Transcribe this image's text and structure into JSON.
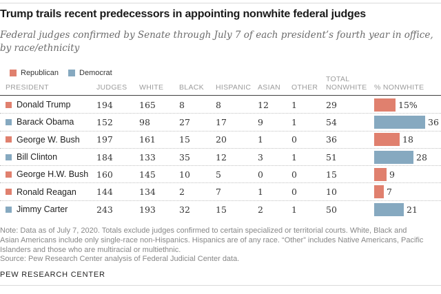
{
  "page": {
    "title": "Trump trails recent predecessors in appointing nonwhite federal judges",
    "subtitle_lines": [
      "Federal judges confirmed by Senate through July 7 of each president’s fourth year in office,",
      "by race/ethnicity"
    ],
    "note_lines": [
      "Note: Data as of July 7, 2020. Totals exclude judges confirmed to certain specialized or territorial courts. White, Black and",
      "Asian Americans include only single-race non-Hispanics. Hispanics are of any race. “Other” includes Native Americans, Pacific",
      "Islanders and those who are multiracial or multiethnic."
    ],
    "source_line": "Source: Pew Research Center analysis of Federal Judicial Center data.",
    "footer_brand": "PEW RESEARCH CENTER"
  },
  "colors": {
    "republican": "#e0806e",
    "democrat": "#86a9c0"
  },
  "legend": [
    {
      "label": "Republican",
      "key": "republican"
    },
    {
      "label": "Democrat",
      "key": "democrat"
    }
  ],
  "headers": {
    "president": "PRESIDENT",
    "judges": "JUDGES",
    "white": "WHITE",
    "black": "BLACK",
    "hispanic": "HISPANIC",
    "asian": "ASIAN",
    "other": "OTHER",
    "total_line1": "TOTAL",
    "total_line2": "NONWHITE",
    "pct": "% NONWHITE"
  },
  "chart_data": {
    "type": "table",
    "title": "Trump trails recent predecessors in appointing nonwhite federal judges",
    "subtitle": "Federal judges confirmed by Senate through July 7 of each president’s fourth year in office, by race/ethnicity",
    "columns": [
      "PRESIDENT",
      "JUDGES",
      "WHITE",
      "BLACK",
      "HISPANIC",
      "ASIAN",
      "OTHER",
      "TOTAL NONWHITE",
      "% NONWHITE"
    ],
    "legend_entries": [
      "Republican",
      "Democrat"
    ],
    "bar_unit": "% nonwhite",
    "rows": [
      {
        "president": "Donald Trump",
        "party": "Republican",
        "judges": 194,
        "white": 165,
        "black": 8,
        "hispanic": 8,
        "asian": 12,
        "other": 1,
        "total_nonwhite": 29,
        "pct_nonwhite": 15,
        "pct_label": "15%"
      },
      {
        "president": "Barack Obama",
        "party": "Democrat",
        "judges": 152,
        "white": 98,
        "black": 27,
        "hispanic": 17,
        "asian": 9,
        "other": 1,
        "total_nonwhite": 54,
        "pct_nonwhite": 36,
        "pct_label": "36"
      },
      {
        "president": "George W. Bush",
        "party": "Republican",
        "judges": 197,
        "white": 161,
        "black": 15,
        "hispanic": 20,
        "asian": 1,
        "other": 0,
        "total_nonwhite": 36,
        "pct_nonwhite": 18,
        "pct_label": "18"
      },
      {
        "president": "Bill Clinton",
        "party": "Democrat",
        "judges": 184,
        "white": 133,
        "black": 35,
        "hispanic": 12,
        "asian": 3,
        "other": 1,
        "total_nonwhite": 51,
        "pct_nonwhite": 28,
        "pct_label": "28"
      },
      {
        "president": "George H.W. Bush",
        "party": "Republican",
        "judges": 160,
        "white": 145,
        "black": 10,
        "hispanic": 5,
        "asian": 0,
        "other": 0,
        "total_nonwhite": 15,
        "pct_nonwhite": 9,
        "pct_label": "9"
      },
      {
        "president": "Ronald Reagan",
        "party": "Republican",
        "judges": 144,
        "white": 134,
        "black": 2,
        "hispanic": 7,
        "asian": 1,
        "other": 0,
        "total_nonwhite": 10,
        "pct_nonwhite": 7,
        "pct_label": "7"
      },
      {
        "president": "Jimmy Carter",
        "party": "Democrat",
        "judges": 243,
        "white": 193,
        "black": 32,
        "hispanic": 15,
        "asian": 2,
        "other": 1,
        "total_nonwhite": 50,
        "pct_nonwhite": 21,
        "pct_label": "21"
      }
    ]
  }
}
